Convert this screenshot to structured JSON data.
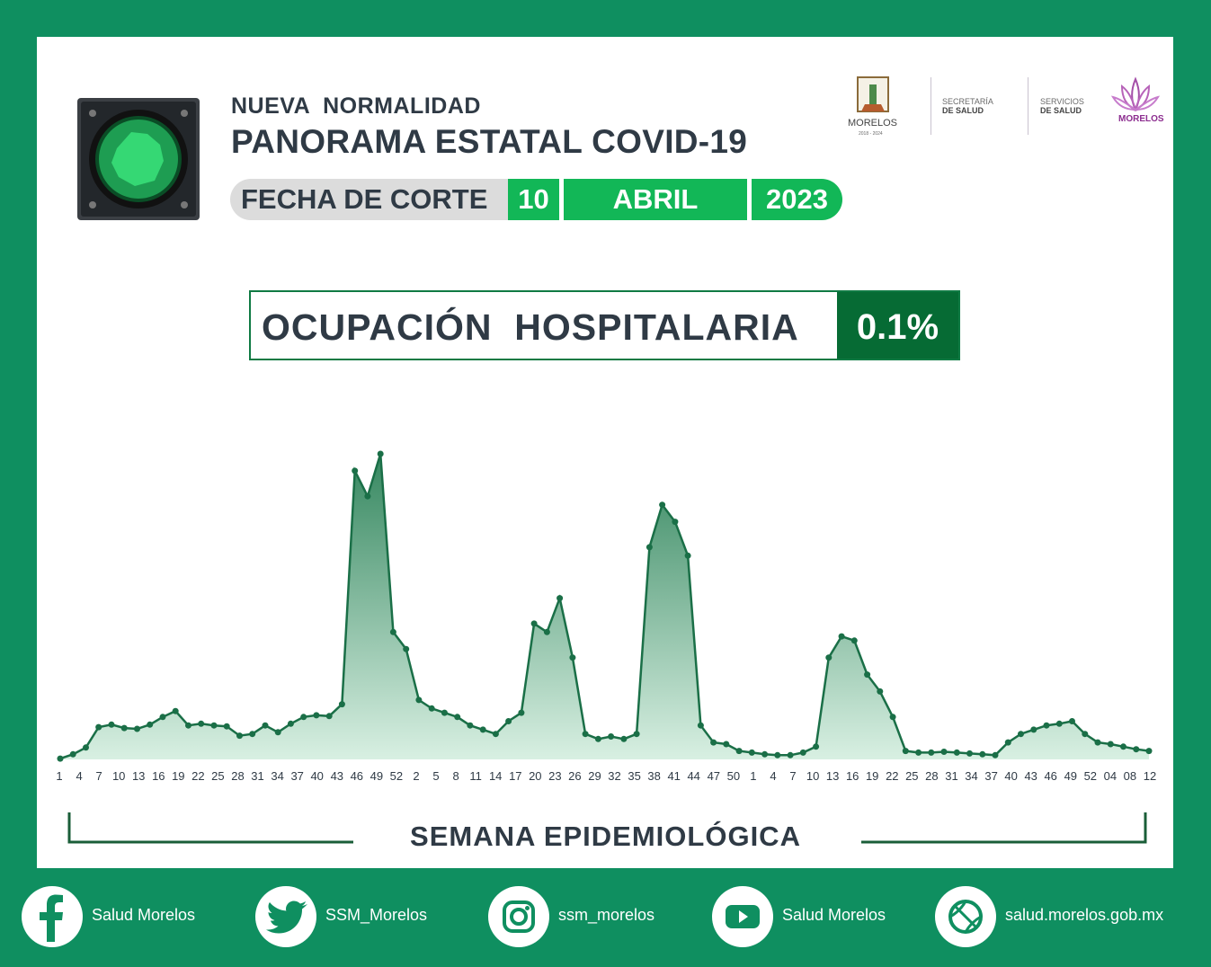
{
  "header": {
    "line1": "NUEVA  NORMALIDAD",
    "line2": "PANORAMA ESTATAL COVID-19",
    "cut_label": "FECHA DE CORTE",
    "cut_day": "10",
    "cut_month": "ABRIL",
    "cut_year": "2023"
  },
  "logos": {
    "state_name": "MORELOS",
    "state_years": "2018 - 2024",
    "sec_line1": "SECRETARÍA",
    "sec_line2": "DE SALUD",
    "serv_line1": "SERVICIOS",
    "serv_line2": "DE SALUD",
    "morelos_brand": "MORELOS"
  },
  "kpi": {
    "label": "OCUPACIÓN  HOSPITALARIA",
    "value": "0.1%"
  },
  "chart_data": {
    "type": "area",
    "xlabel": "SEMANA EPIDEMIOLÓGICA",
    "x_tick_labels": [
      "1",
      "4",
      "7",
      "10",
      "13",
      "16",
      "19",
      "22",
      "25",
      "28",
      "31",
      "34",
      "37",
      "40",
      "43",
      "46",
      "49",
      "52",
      "2",
      "5",
      "8",
      "11",
      "14",
      "17",
      "20",
      "23",
      "26",
      "29",
      "32",
      "35",
      "38",
      "41",
      "44",
      "47",
      "50",
      "1",
      "4",
      "7",
      "10",
      "13",
      "16",
      "19",
      "22",
      "25",
      "28",
      "31",
      "34",
      "37",
      "40",
      "43",
      "46",
      "49",
      "52",
      "04",
      "08",
      "12"
    ],
    "series": [
      {
        "color": "#1a6f47",
        "fill_color": "#2e9a64",
        "values": [
          1,
          6,
          14,
          38,
          41,
          37,
          36,
          41,
          50,
          57,
          40,
          42,
          40,
          39,
          28,
          30,
          40,
          32,
          42,
          50,
          52,
          51,
          65,
          340,
          310,
          360,
          150,
          130,
          70,
          60,
          55,
          50,
          40,
          35,
          30,
          45,
          55,
          160,
          150,
          190,
          120,
          30,
          24,
          27,
          24,
          30,
          250,
          300,
          280,
          240,
          40,
          20,
          18,
          10,
          8,
          6,
          5,
          5,
          8,
          15,
          120,
          145,
          140,
          100,
          80,
          50,
          10,
          8,
          8,
          9,
          8,
          7,
          6,
          5,
          20,
          30,
          35,
          40,
          42,
          45,
          30,
          20,
          18,
          15,
          12,
          10
        ]
      }
    ],
    "grid": false,
    "legend": "none"
  },
  "footer": {
    "facebook": "Salud Morelos",
    "twitter": "SSM_Morelos",
    "instagram": "ssm_morelos",
    "youtube": "Salud Morelos",
    "website": "salud.morelos.gob.mx"
  },
  "colors": {
    "background": "#0f8f60",
    "accent_green": "#12b757",
    "dark_green": "#066b34",
    "text": "#2f3a45"
  }
}
